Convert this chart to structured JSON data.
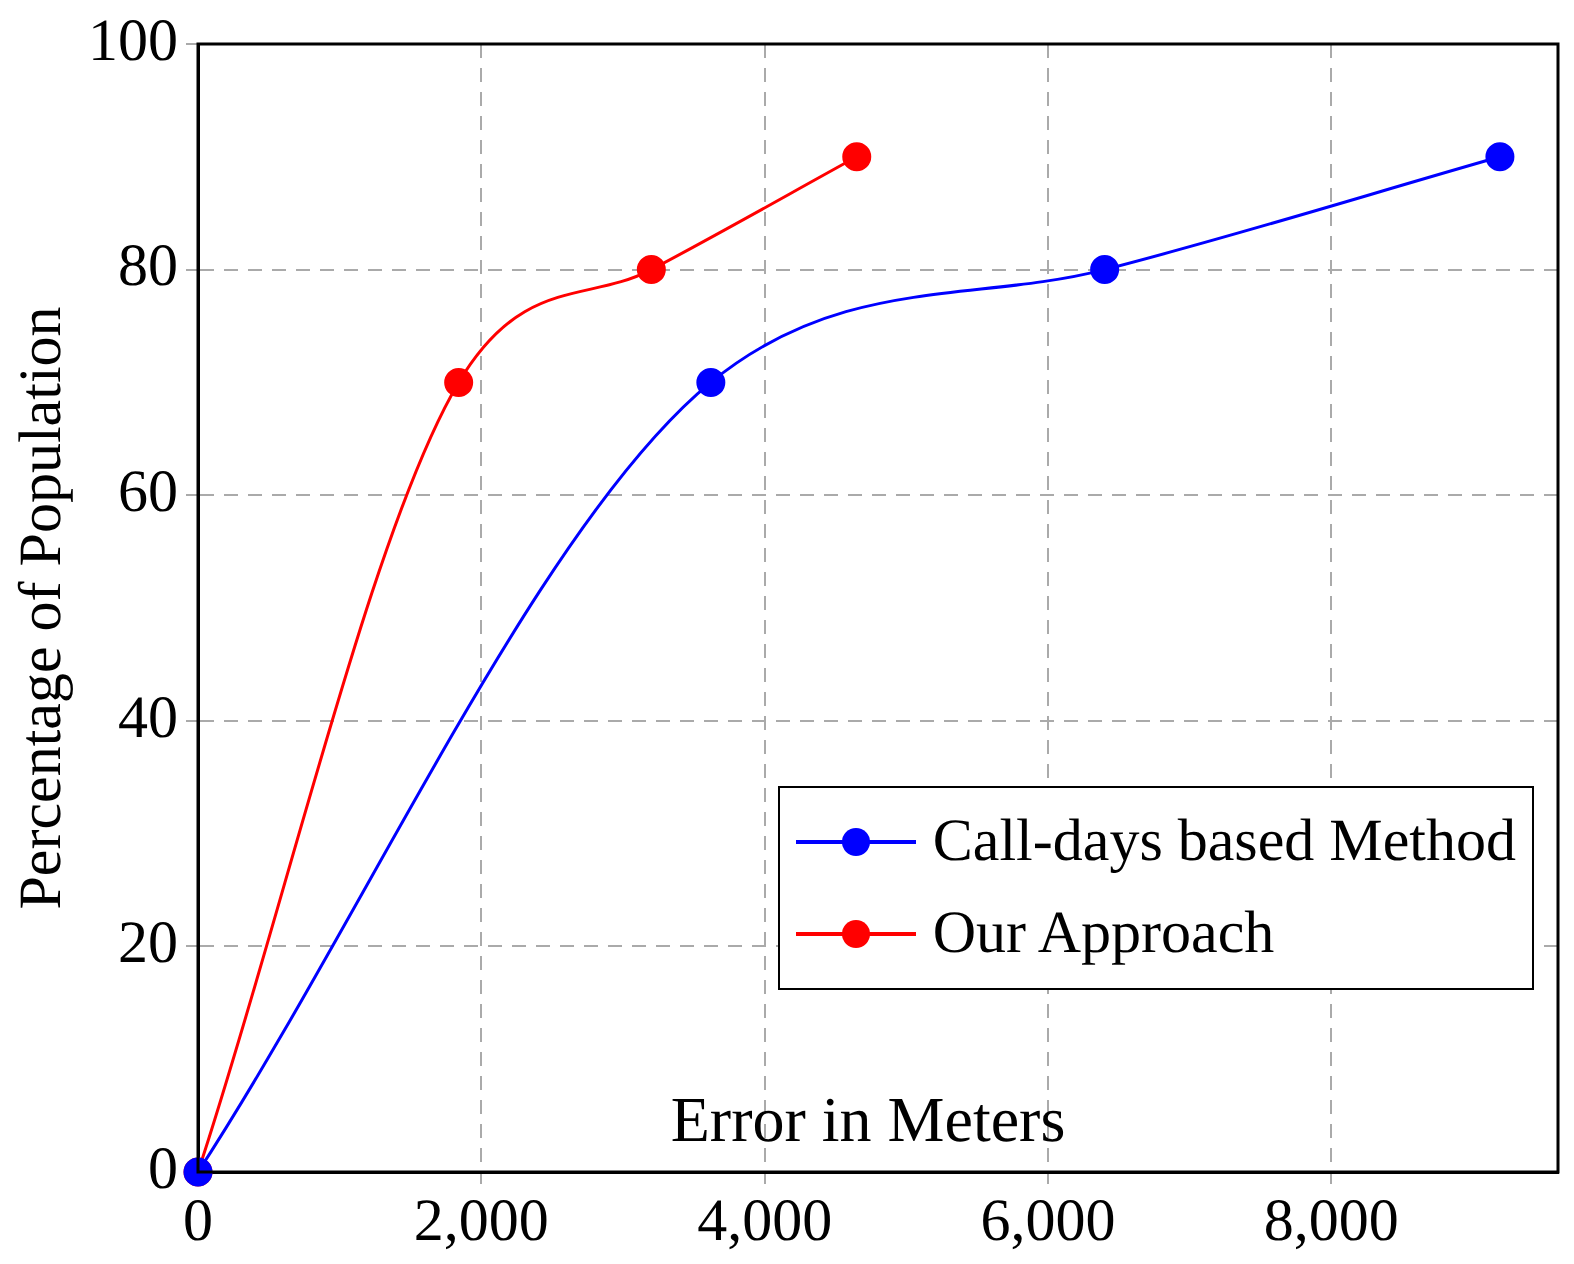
{
  "chart_data": {
    "type": "line",
    "xlabel": "Error in Meters",
    "ylabel": "Percentage of Population",
    "xlim": [
      0,
      9600
    ],
    "ylim": [
      0,
      100
    ],
    "xticks": [
      0,
      {
        "value": 2000,
        "label": "2,000"
      },
      {
        "value": 4000,
        "label": "4,000"
      },
      {
        "value": 6000,
        "label": "6,000"
      },
      {
        "value": 8000,
        "label": "8,000"
      }
    ],
    "yticks": [
      0,
      20,
      40,
      60,
      80,
      100
    ],
    "grid": true,
    "legend": "bottom right",
    "marker": "circle",
    "line_style": "solid",
    "series": [
      {
        "name": "Call-days based Method",
        "color": "#0000ff",
        "x": [
          0,
          3620,
          6400,
          9190
        ],
        "values": [
          0,
          70,
          80,
          90
        ]
      },
      {
        "name": "Our Approach",
        "color": "#ff0000",
        "x": [
          0,
          1840,
          3200,
          4650
        ],
        "values": [
          0,
          70,
          80,
          90
        ]
      }
    ]
  }
}
